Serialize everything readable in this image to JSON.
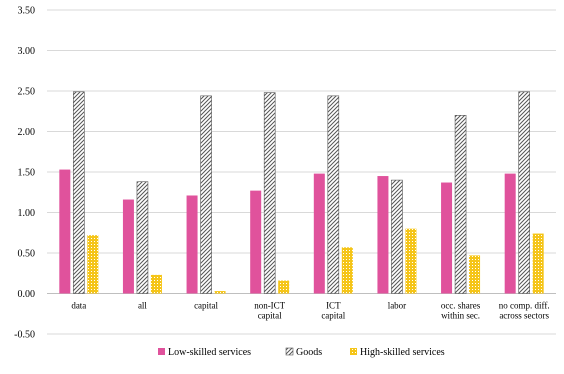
{
  "chart_data": {
    "type": "bar",
    "categories": [
      [
        "data"
      ],
      [
        "all"
      ],
      [
        "capital"
      ],
      [
        "non-ICT",
        "capital"
      ],
      [
        "ICT",
        "capital"
      ],
      [
        "labor"
      ],
      [
        "occ. shares",
        "within sec."
      ],
      [
        "no comp. diff.",
        "across sectors"
      ]
    ],
    "series": [
      {
        "name": "Low-skilled services",
        "color": "#e0529c",
        "pattern": "solid",
        "values": [
          1.53,
          1.16,
          1.21,
          1.27,
          1.48,
          1.45,
          1.37,
          1.48
        ]
      },
      {
        "name": "Goods",
        "color": "#555555",
        "pattern": "diagonal-hatch",
        "values": [
          2.49,
          1.38,
          2.44,
          2.48,
          2.44,
          1.4,
          2.2,
          2.49
        ]
      },
      {
        "name": "High-skilled services",
        "color": "#f5c518",
        "pattern": "dotted",
        "values": [
          0.72,
          0.23,
          0.03,
          0.16,
          0.57,
          0.8,
          0.47,
          0.74
        ]
      }
    ],
    "ylim": [
      -0.5,
      3.5
    ],
    "yticks": [
      "3.50",
      "3.00",
      "2.50",
      "2.00",
      "1.50",
      "1.00",
      "0.50",
      "0.00",
      "-0.50"
    ],
    "ytick_values": [
      3.5,
      3.0,
      2.5,
      2.0,
      1.5,
      1.0,
      0.5,
      0.0,
      -0.5
    ],
    "grid": "horizontal",
    "legend_position": "bottom-center",
    "title": "",
    "xlabel": "",
    "ylabel": ""
  }
}
